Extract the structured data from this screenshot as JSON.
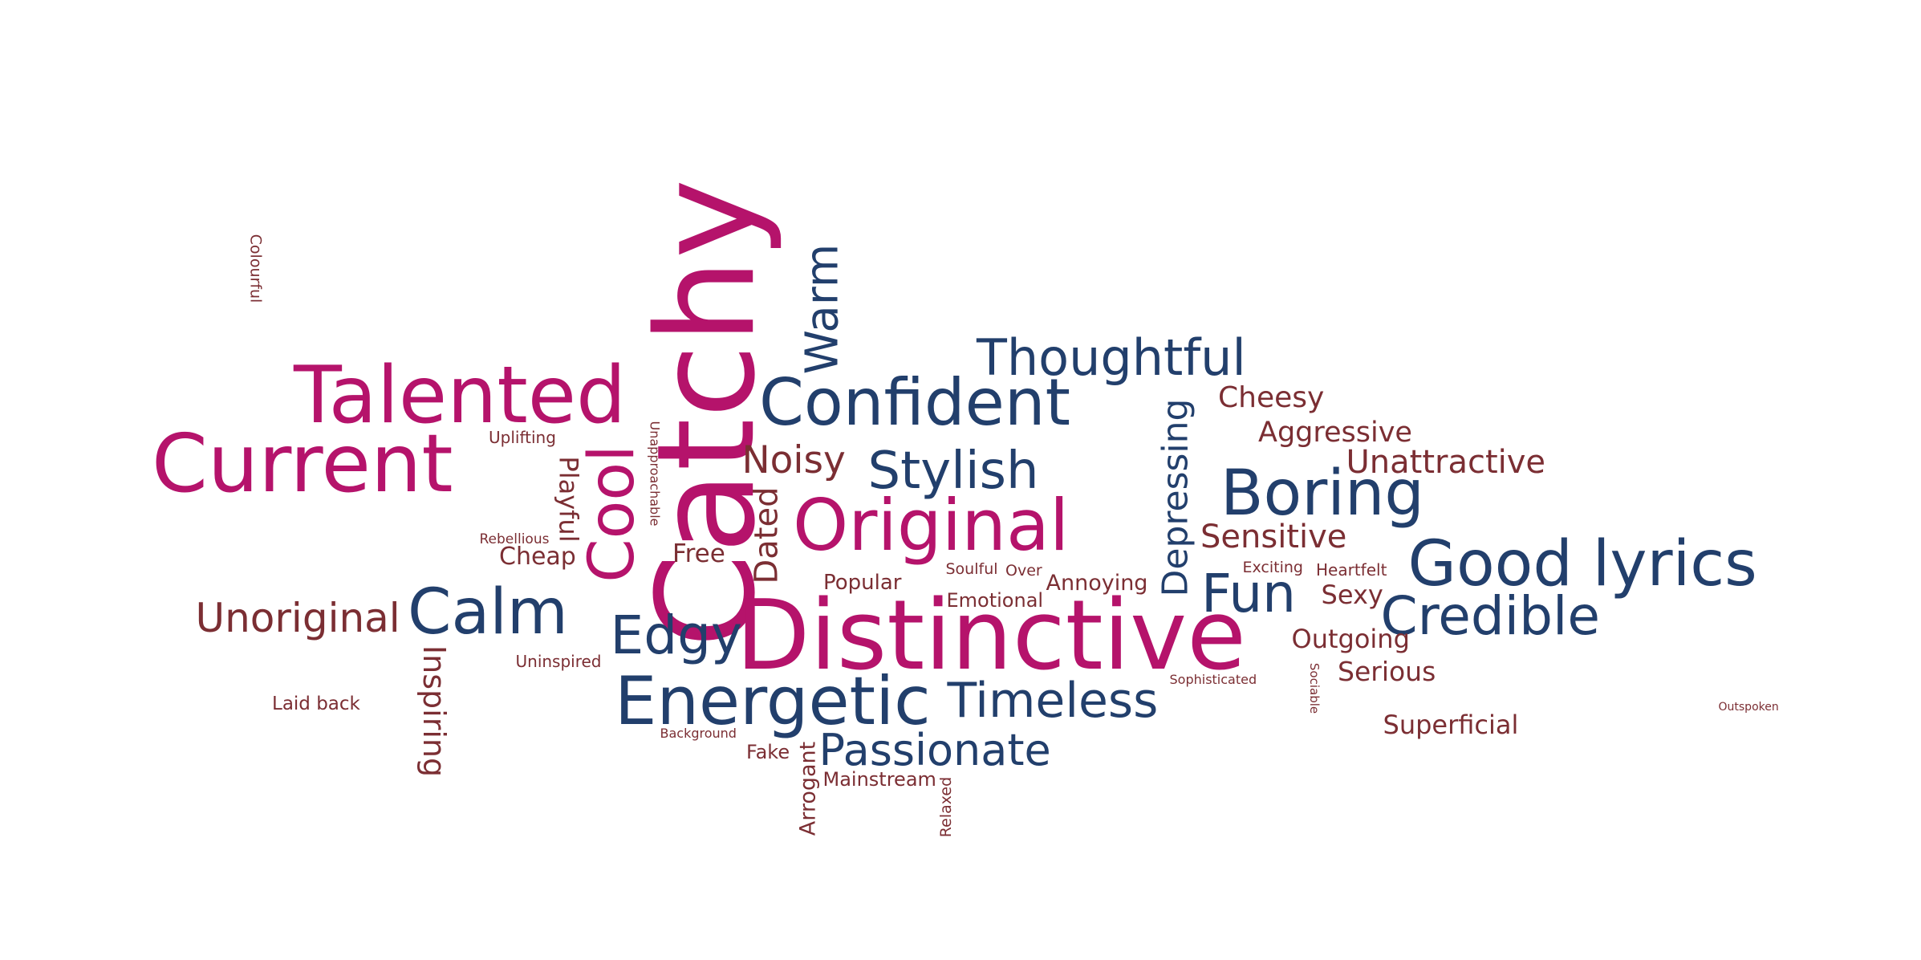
{
  "palette": {
    "magenta": "#b5136b",
    "navy": "#223f6c",
    "maroon": "#7b2e33"
  },
  "words": [
    {
      "text": "Catchy",
      "color": "magenta"
    },
    {
      "text": "Distinctive",
      "color": "magenta"
    },
    {
      "text": "Current",
      "color": "magenta"
    },
    {
      "text": "Talented",
      "color": "magenta"
    },
    {
      "text": "Original",
      "color": "magenta"
    },
    {
      "text": "Cool",
      "color": "magenta"
    },
    {
      "text": "Confident",
      "color": "navy"
    },
    {
      "text": "Good lyrics",
      "color": "navy"
    },
    {
      "text": "Boring",
      "color": "navy"
    },
    {
      "text": "Energetic",
      "color": "navy"
    },
    {
      "text": "Thoughtful",
      "color": "navy"
    },
    {
      "text": "Warm",
      "color": "navy"
    },
    {
      "text": "Calm",
      "color": "navy"
    },
    {
      "text": "Stylish",
      "color": "navy"
    },
    {
      "text": "Credible",
      "color": "navy"
    },
    {
      "text": "Fun",
      "color": "navy"
    },
    {
      "text": "Edgy",
      "color": "navy"
    },
    {
      "text": "Timeless",
      "color": "navy"
    },
    {
      "text": "Passionate",
      "color": "navy"
    },
    {
      "text": "Depressing",
      "color": "navy"
    },
    {
      "text": "Unoriginal",
      "color": "maroon"
    },
    {
      "text": "Noisy",
      "color": "maroon"
    },
    {
      "text": "Inspiring",
      "color": "maroon"
    },
    {
      "text": "Dated",
      "color": "maroon"
    },
    {
      "text": "Playful",
      "color": "maroon"
    },
    {
      "text": "Cheesy",
      "color": "maroon"
    },
    {
      "text": "Aggressive",
      "color": "maroon"
    },
    {
      "text": "Unattractive",
      "color": "maroon"
    },
    {
      "text": "Sensitive",
      "color": "maroon"
    },
    {
      "text": "Outgoing",
      "color": "maroon"
    },
    {
      "text": "Serious",
      "color": "maroon"
    },
    {
      "text": "Superficial",
      "color": "maroon"
    },
    {
      "text": "Sexy",
      "color": "maroon"
    },
    {
      "text": "Free",
      "color": "maroon"
    },
    {
      "text": "Cheap",
      "color": "maroon"
    },
    {
      "text": "Popular",
      "color": "maroon"
    },
    {
      "text": "Annoying",
      "color": "maroon"
    },
    {
      "text": "Emotional",
      "color": "maroon"
    },
    {
      "text": "Arrogant",
      "color": "maroon"
    },
    {
      "text": "Fake",
      "color": "maroon"
    },
    {
      "text": "Mainstream",
      "color": "maroon"
    },
    {
      "text": "Laid back",
      "color": "maroon"
    },
    {
      "text": "Uninspired",
      "color": "maroon"
    },
    {
      "text": "Uplifting",
      "color": "maroon"
    },
    {
      "text": "Rebellious",
      "color": "maroon"
    },
    {
      "text": "Soulful",
      "color": "maroon"
    },
    {
      "text": "Over",
      "color": "maroon"
    },
    {
      "text": "Exciting",
      "color": "maroon"
    },
    {
      "text": "Heartfelt",
      "color": "maroon"
    },
    {
      "text": "Colourful",
      "color": "maroon"
    },
    {
      "text": "Unapproachable",
      "color": "maroon"
    },
    {
      "text": "Background",
      "color": "maroon"
    },
    {
      "text": "Relaxed",
      "color": "maroon"
    },
    {
      "text": "Sophisticated",
      "color": "maroon"
    },
    {
      "text": "Sociable",
      "color": "maroon"
    },
    {
      "text": "Outspoken",
      "color": "maroon"
    }
  ]
}
